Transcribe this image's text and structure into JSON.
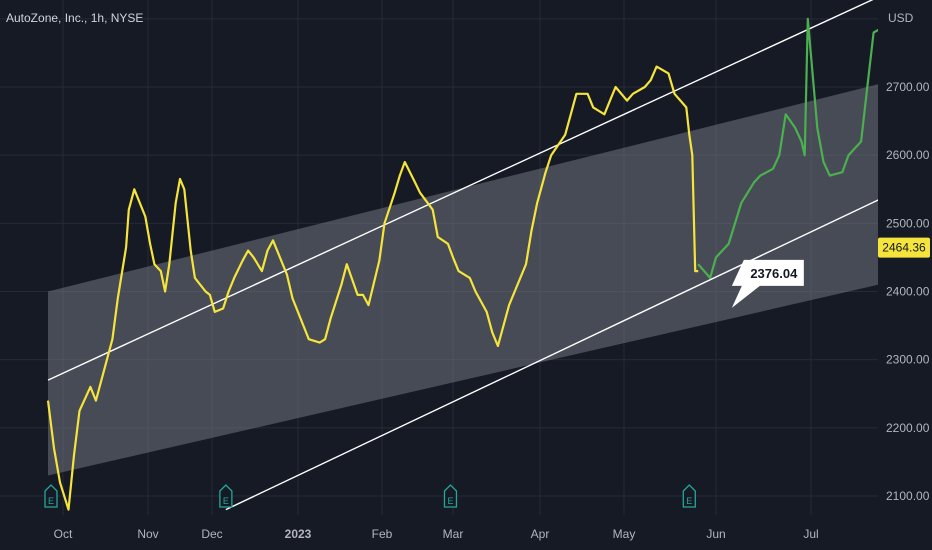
{
  "header": {
    "symbol_title": "AutoZone, Inc., 1h, NYSE",
    "currency": "USD"
  },
  "colors": {
    "background": "#161a25",
    "grid": "#252a36",
    "price_history": "#f5e43b",
    "price_projection": "#4caf50",
    "channel_fill": "#787b86",
    "trendline": "#ffffff",
    "axis_text": "#b2b5be",
    "earnings_marker": "#26a69a"
  },
  "chart_data": {
    "type": "line",
    "title": "AutoZone, Inc., 1h, NYSE",
    "y_axis": {
      "unit": "USD",
      "ticks": [
        2100,
        2200,
        2300,
        2400,
        2500,
        2600,
        2700
      ],
      "ylim": [
        2070,
        2825
      ],
      "position": "right"
    },
    "x_axis": {
      "tick_labels": [
        "Oct",
        "Nov",
        "Dec",
        "2023",
        "Feb",
        "Mar",
        "Apr",
        "May",
        "Jun",
        "Jul"
      ]
    },
    "grid": true,
    "series": [
      {
        "role": "history",
        "color": "#f5e43b",
        "points": [
          [
            "2022-09-26",
            2240
          ],
          [
            "2022-09-28",
            2170
          ],
          [
            "2022-09-30",
            2120
          ],
          [
            "2022-10-03",
            2080
          ],
          [
            "2022-10-05",
            2160
          ],
          [
            "2022-10-07",
            2225
          ],
          [
            "2022-10-11",
            2260
          ],
          [
            "2022-10-13",
            2240
          ],
          [
            "2022-10-17",
            2300
          ],
          [
            "2022-10-19",
            2330
          ],
          [
            "2022-10-21",
            2390
          ],
          [
            "2022-10-24",
            2465
          ],
          [
            "2022-10-25",
            2520
          ],
          [
            "2022-10-27",
            2550
          ],
          [
            "2022-10-31",
            2510
          ],
          [
            "2022-11-02",
            2470
          ],
          [
            "2022-11-04",
            2440
          ],
          [
            "2022-11-07",
            2430
          ],
          [
            "2022-11-09",
            2400
          ],
          [
            "2022-11-11",
            2440
          ],
          [
            "2022-11-14",
            2530
          ],
          [
            "2022-11-16",
            2565
          ],
          [
            "2022-11-18",
            2550
          ],
          [
            "2022-11-21",
            2460
          ],
          [
            "2022-11-23",
            2420
          ],
          [
            "2022-11-28",
            2400
          ],
          [
            "2022-11-30",
            2395
          ],
          [
            "2022-12-02",
            2370
          ],
          [
            "2022-12-05",
            2375
          ],
          [
            "2022-12-07",
            2400
          ],
          [
            "2022-12-09",
            2420
          ],
          [
            "2022-12-12",
            2445
          ],
          [
            "2022-12-14",
            2460
          ],
          [
            "2022-12-16",
            2450
          ],
          [
            "2022-12-19",
            2430
          ],
          [
            "2022-12-21",
            2460
          ],
          [
            "2022-12-23",
            2475
          ],
          [
            "2022-12-28",
            2425
          ],
          [
            "2022-12-30",
            2390
          ],
          [
            "2023-01-03",
            2350
          ],
          [
            "2023-01-05",
            2330
          ],
          [
            "2023-01-09",
            2325
          ],
          [
            "2023-01-11",
            2330
          ],
          [
            "2023-01-13",
            2360
          ],
          [
            "2023-01-17",
            2410
          ],
          [
            "2023-01-19",
            2440
          ],
          [
            "2023-01-23",
            2395
          ],
          [
            "2023-01-25",
            2395
          ],
          [
            "2023-01-27",
            2380
          ],
          [
            "2023-01-31",
            2445
          ],
          [
            "2023-02-02",
            2500
          ],
          [
            "2023-02-06",
            2545
          ],
          [
            "2023-02-08",
            2570
          ],
          [
            "2023-02-10",
            2590
          ],
          [
            "2023-02-14",
            2560
          ],
          [
            "2023-02-16",
            2545
          ],
          [
            "2023-02-21",
            2520
          ],
          [
            "2023-02-23",
            2480
          ],
          [
            "2023-02-27",
            2470
          ],
          [
            "2023-03-01",
            2450
          ],
          [
            "2023-03-03",
            2430
          ],
          [
            "2023-03-07",
            2420
          ],
          [
            "2023-03-09",
            2400
          ],
          [
            "2023-03-13",
            2370
          ],
          [
            "2023-03-15",
            2340
          ],
          [
            "2023-03-17",
            2320
          ],
          [
            "2023-03-21",
            2380
          ],
          [
            "2023-03-23",
            2400
          ],
          [
            "2023-03-27",
            2440
          ],
          [
            "2023-03-29",
            2490
          ],
          [
            "2023-03-31",
            2530
          ],
          [
            "2023-04-03",
            2575
          ],
          [
            "2023-04-05",
            2600
          ],
          [
            "2023-04-10",
            2630
          ],
          [
            "2023-04-12",
            2660
          ],
          [
            "2023-04-14",
            2690
          ],
          [
            "2023-04-18",
            2690
          ],
          [
            "2023-04-20",
            2670
          ],
          [
            "2023-04-24",
            2660
          ],
          [
            "2023-04-26",
            2680
          ],
          [
            "2023-04-28",
            2700
          ],
          [
            "2023-05-02",
            2680
          ],
          [
            "2023-05-04",
            2690
          ],
          [
            "2023-05-08",
            2700
          ],
          [
            "2023-05-10",
            2710
          ],
          [
            "2023-05-12",
            2730
          ],
          [
            "2023-05-16",
            2720
          ],
          [
            "2023-05-18",
            2690
          ],
          [
            "2023-05-22",
            2670
          ],
          [
            "2023-05-23",
            2630
          ],
          [
            "2023-05-24",
            2600
          ],
          [
            "2023-05-25",
            2430
          ],
          [
            "2023-05-26",
            2430
          ]
        ]
      },
      {
        "role": "projection",
        "color": "#4caf50",
        "points": [
          [
            "2023-05-26",
            2440
          ],
          [
            "2023-05-30",
            2420
          ],
          [
            "2023-06-01",
            2450
          ],
          [
            "2023-06-05",
            2470
          ],
          [
            "2023-06-07",
            2500
          ],
          [
            "2023-06-09",
            2530
          ],
          [
            "2023-06-13",
            2560
          ],
          [
            "2023-06-15",
            2570
          ],
          [
            "2023-06-19",
            2580
          ],
          [
            "2023-06-21",
            2600
          ],
          [
            "2023-06-23",
            2660
          ],
          [
            "2023-06-26",
            2640
          ],
          [
            "2023-06-28",
            2620
          ],
          [
            "2023-06-29",
            2600
          ],
          [
            "2023-06-30",
            2800
          ],
          [
            "2023-07-03",
            2640
          ],
          [
            "2023-07-05",
            2590
          ],
          [
            "2023-07-07",
            2570
          ],
          [
            "2023-07-11",
            2575
          ],
          [
            "2023-07-13",
            2600
          ],
          [
            "2023-07-17",
            2620
          ],
          [
            "2023-07-19",
            2700
          ],
          [
            "2023-07-21",
            2780
          ],
          [
            "2023-07-25",
            2790
          ]
        ]
      }
    ],
    "channel_lines": [
      {
        "name": "upper_trendline",
        "points": [
          [
            "2022-09-26",
            2270
          ],
          [
            "2023-07-31",
            2850
          ]
        ]
      },
      {
        "name": "lower_trendline",
        "points": [
          [
            "2022-12-06",
            2080
          ],
          [
            "2023-08-01",
            2555
          ]
        ]
      }
    ],
    "channel_band": {
      "top": [
        [
          "2022-09-26",
          2400
        ],
        [
          "2023-08-01",
          2715
        ]
      ],
      "bottom": [
        [
          "2022-09-26",
          2130
        ],
        [
          "2023-08-01",
          2420
        ]
      ]
    },
    "annotations": [
      {
        "text": "2376.04",
        "value": 2376.04,
        "points_to": [
          "2023-06-06",
          2376.04
        ]
      }
    ],
    "last_price": 2464.36,
    "earnings_markers": [
      {
        "date": "2022-09-27",
        "label": "E"
      },
      {
        "date": "2022-12-06",
        "label": "E"
      },
      {
        "date": "2023-02-28",
        "label": "E"
      },
      {
        "date": "2023-05-23",
        "label": "E"
      }
    ]
  }
}
